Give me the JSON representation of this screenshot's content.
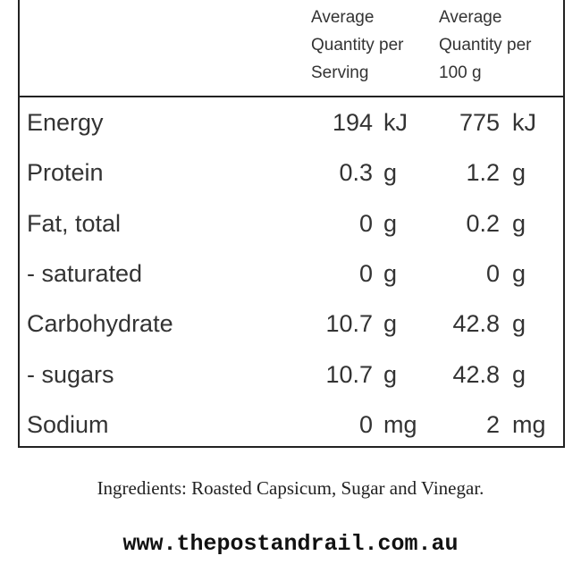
{
  "table": {
    "headers": [
      "Average\nQuantity per\nServing",
      "Average\nQuantity per\n100 g"
    ],
    "rows": [
      [
        "Energy",
        "194",
        "kJ",
        "775",
        "kJ"
      ],
      [
        "Protein",
        "0.3",
        "g",
        "1.2",
        "g"
      ],
      [
        "Fat, total",
        "0",
        "g",
        "0.2",
        "g"
      ],
      [
        "- saturated",
        "0",
        "g",
        "0",
        "g"
      ],
      [
        "Carbohydrate",
        "10.7",
        "g",
        "42.8",
        "g"
      ],
      [
        "- sugars",
        "10.7",
        "g",
        "42.8",
        "g"
      ],
      [
        "Sodium",
        "0",
        "mg",
        "2",
        "mg"
      ]
    ]
  },
  "footer": {
    "ingredients": "Ingredients: Roasted Capsicum, Sugar and Vinegar.",
    "url": "www.thepostandrail.com.au"
  }
}
